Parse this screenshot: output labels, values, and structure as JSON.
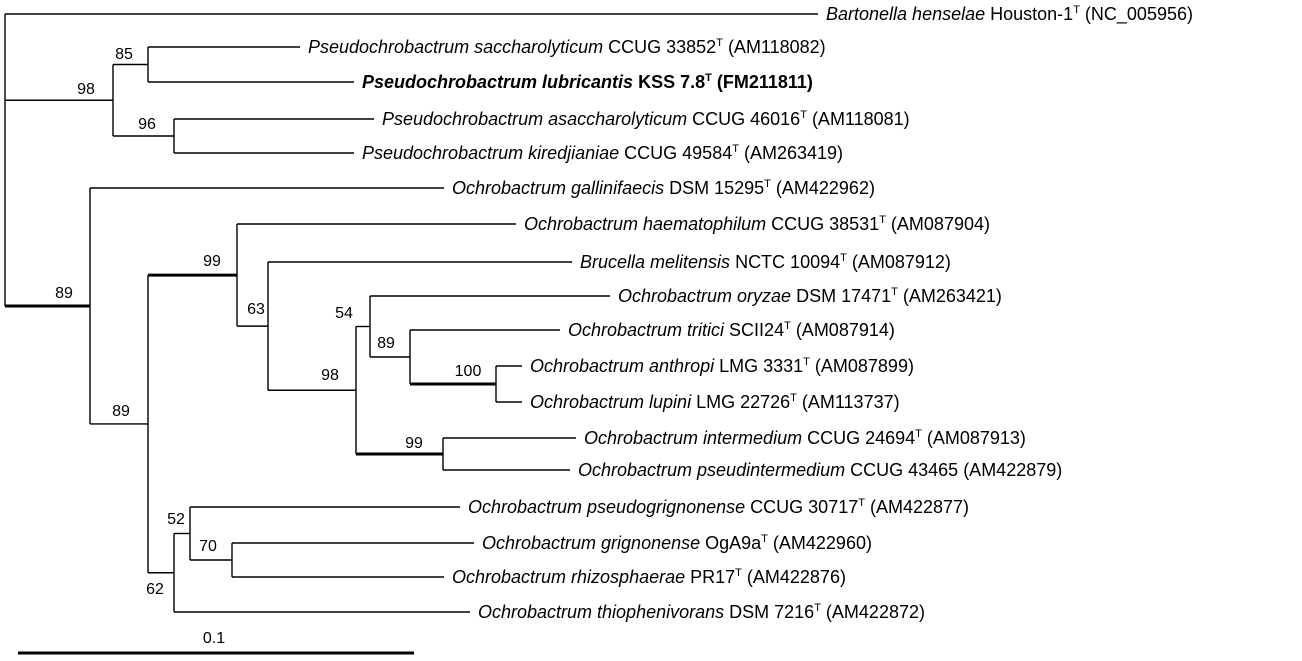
{
  "taxa": [
    {
      "genus": "Bartonella henselae",
      "rest": " Houston-1",
      "type_strain": true,
      "accession": " (NC_005956)",
      "bold": false
    },
    {
      "genus": "Pseudochrobactrum saccharolyticum",
      "rest": " CCUG 33852",
      "type_strain": true,
      "accession": " (AM118082)",
      "bold": false
    },
    {
      "genus": "Pseudochrobactrum lubricantis",
      "rest": " KSS 7.8",
      "type_strain": true,
      "accession": " (FM211811)",
      "bold": true
    },
    {
      "genus": "Pseudochrobactrum asaccharolyticum",
      "rest": " CCUG 46016",
      "type_strain": true,
      "accession": " (AM118081)",
      "bold": false
    },
    {
      "genus": "Pseudochrobactrum kiredjianiae",
      "rest": " CCUG 49584",
      "type_strain": true,
      "accession": " (AM263419)",
      "bold": false
    },
    {
      "genus": "Ochrobactrum gallinifaecis",
      "rest": " DSM 15295",
      "type_strain": true,
      "accession": " (AM422962)",
      "bold": false
    },
    {
      "genus": "Ochrobactrum haematophilum",
      "rest": " CCUG 38531",
      "type_strain": true,
      "accession": " (AM087904)",
      "bold": false
    },
    {
      "genus": "Brucella melitensis",
      "rest": " NCTC 10094",
      "type_strain": true,
      "accession": " (AM087912)",
      "bold": false
    },
    {
      "genus": "Ochrobactrum oryzae",
      "rest": " DSM 17471",
      "type_strain": true,
      "accession": " (AM263421)",
      "bold": false
    },
    {
      "genus": "Ochrobactrum tritici",
      "rest": " SCII24",
      "type_strain": true,
      "accession": " (AM087914)",
      "bold": false
    },
    {
      "genus": "Ochrobactrum anthropi",
      "rest": " LMG 3331",
      "type_strain": true,
      "accession": " (AM087899)",
      "bold": false
    },
    {
      "genus": "Ochrobactrum lupini",
      "rest": " LMG 22726",
      "type_strain": true,
      "accession": " (AM113737)",
      "bold": false
    },
    {
      "genus": "Ochrobactrum intermedium",
      "rest": " CCUG 24694",
      "type_strain": true,
      "accession": " (AM087913)",
      "bold": false
    },
    {
      "genus": "Ochrobactrum pseudintermedium",
      "rest": " CCUG 43465",
      "type_strain": false,
      "accession": " (AM422879)",
      "bold": false
    },
    {
      "genus": "Ochrobactrum pseudogrignonense",
      "rest": " CCUG 30717",
      "type_strain": true,
      "accession": " (AM422877)",
      "bold": false
    },
    {
      "genus": "Ochrobactrum grignonense",
      "rest": " OgA9a",
      "type_strain": true,
      "accession": " (AM422960)",
      "bold": false
    },
    {
      "genus": "Ochrobactrum rhizosphaerae",
      "rest": " PR17",
      "type_strain": true,
      "accession": " (AM422876)",
      "bold": false
    },
    {
      "genus": "Ochrobactrum thiophenivorans",
      "rest": " DSM 7216",
      "type_strain": true,
      "accession": " (AM422872)",
      "bold": false
    }
  ],
  "type_mark": "T",
  "bootstrap": {
    "pseudo_sacch_lubri": "85",
    "pseudochrobactrum": "98",
    "pseudo_asacch_kired": "96",
    "ochro_root": "89",
    "haem_brucella_clade": "99",
    "brucella_clade": "63",
    "oryzae_clade": "54",
    "tritici_clade": "89",
    "anthropi_lupini": "100",
    "anthropi_intermedium": "98",
    "intermedium_pair": "99",
    "ochro_main": "89",
    "grignon_group": "52",
    "grignon_rhizo": "70",
    "grignon_thio": "62"
  },
  "scale_bar": {
    "label": "0.1"
  }
}
